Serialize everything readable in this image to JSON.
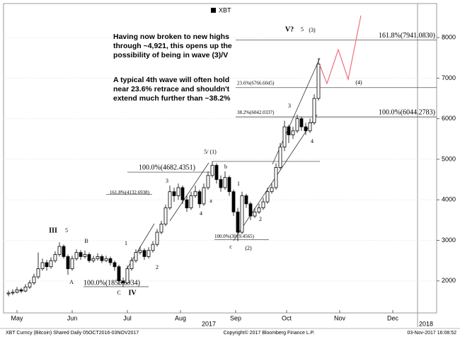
{
  "chart_data": {
    "type": "candlestick",
    "legend": "XBT",
    "categories": [
      null,
      null,
      null,
      null,
      null,
      null,
      null,
      null,
      null,
      null,
      null,
      null,
      null,
      null,
      null,
      null,
      null,
      null,
      null,
      null,
      null,
      null,
      null,
      null,
      null,
      null,
      null,
      null,
      null,
      null,
      null,
      null,
      null,
      null,
      null,
      null,
      null,
      null,
      null,
      null,
      null,
      null,
      null,
      null,
      null,
      null,
      null,
      null,
      null,
      null,
      null,
      null,
      null,
      null,
      null,
      null,
      null,
      null,
      null,
      null,
      null,
      null,
      null,
      null,
      null,
      null,
      null,
      null,
      null,
      null,
      null,
      null,
      null,
      null
    ],
    "open": [
      1680,
      1700,
      1720,
      1780,
      1750,
      1850,
      1950,
      2100,
      2300,
      2450,
      2350,
      2500,
      2650,
      2850,
      2600,
      2300,
      2550,
      2700,
      2600,
      2650,
      2500,
      2550,
      2600,
      2500,
      2550,
      2450,
      2350,
      2000,
      1950,
      2300,
      2500,
      2700,
      2750,
      2600,
      2750,
      2900,
      3200,
      3400,
      3800,
      4200,
      4100,
      4300,
      4000,
      3800,
      4100,
      4200,
      3900,
      4300,
      4600,
      4850,
      4500,
      4300,
      4550,
      4200,
      3700,
      3200,
      4100,
      3900,
      3600,
      3700,
      3800,
      3950,
      4200,
      4300,
      4800,
      5300,
      5800,
      5600,
      5700,
      6000,
      5800,
      5700,
      5900,
      6500
    ],
    "high": [
      1760,
      1790,
      1850,
      1830,
      1920,
      2020,
      2180,
      2700,
      2550,
      2520,
      2580,
      2730,
      2950,
      2900,
      2650,
      2620,
      2780,
      2760,
      2750,
      2700,
      2620,
      2680,
      2650,
      2620,
      2600,
      2500,
      2400,
      2080,
      2380,
      2580,
      2780,
      2850,
      2800,
      2830,
      2980,
      3280,
      3480,
      3880,
      4350,
      4300,
      4400,
      4350,
      4100,
      4200,
      4350,
      4250,
      4400,
      4700,
      4950,
      4900,
      4600,
      4700,
      4600,
      4250,
      3800,
      4200,
      4150,
      3950,
      3800,
      3900,
      4050,
      4300,
      4400,
      4900,
      5400,
      5950,
      5850,
      5800,
      6100,
      6050,
      5900,
      6000,
      6600,
      7500
    ],
    "low": [
      1620,
      1650,
      1690,
      1700,
      1720,
      1800,
      1900,
      2050,
      2250,
      2250,
      2300,
      2450,
      2600,
      2550,
      2150,
      2250,
      2500,
      2520,
      2550,
      2450,
      2450,
      2500,
      2440,
      2460,
      2380,
      2250,
      1900,
      1850,
      1920,
      2250,
      2450,
      2650,
      2520,
      2550,
      2700,
      2850,
      3150,
      3350,
      3750,
      3950,
      4000,
      3900,
      3700,
      3750,
      4050,
      3800,
      3850,
      4250,
      4550,
      4400,
      4200,
      4250,
      4100,
      3600,
      2980,
      3150,
      3800,
      3500,
      3550,
      3650,
      3750,
      3900,
      4150,
      4250,
      4750,
      5200,
      5400,
      5500,
      5650,
      5700,
      5600,
      5650,
      5850,
      6450
    ],
    "close": [
      1700,
      1720,
      1780,
      1750,
      1850,
      1950,
      2100,
      2300,
      2450,
      2350,
      2500,
      2650,
      2850,
      2600,
      2300,
      2550,
      2700,
      2600,
      2650,
      2500,
      2550,
      2600,
      2500,
      2550,
      2450,
      2350,
      2000,
      1950,
      2300,
      2500,
      2700,
      2750,
      2600,
      2750,
      2900,
      3200,
      3400,
      3800,
      4200,
      4100,
      4300,
      4000,
      3800,
      4100,
      4200,
      3900,
      4300,
      4600,
      4850,
      4500,
      4300,
      4550,
      4200,
      3700,
      3200,
      4100,
      3900,
      3600,
      3700,
      3800,
      3950,
      4200,
      4300,
      4800,
      5300,
      5800,
      5600,
      5700,
      6000,
      5800,
      5700,
      5900,
      6500,
      7350
    ],
    "ylim": [
      1210,
      8840
    ],
    "yticks": [
      2000,
      3000,
      4000,
      5000,
      6000,
      7000,
      8000
    ],
    "xticks": [
      {
        "value": 2,
        "label": "May"
      },
      {
        "value": 15,
        "label": "Jun"
      },
      {
        "value": 28,
        "label": "Jul"
      },
      {
        "value": 40.5,
        "label": "Aug"
      },
      {
        "value": 53.5,
        "label": "Sep"
      },
      {
        "value": 65.5,
        "label": "Oct"
      },
      {
        "value": 78,
        "label": "Nov"
      },
      {
        "value": 90.5,
        "label": "Dec"
      }
    ],
    "year_labels": [
      "2017",
      "2018"
    ],
    "levels": [
      {
        "value": 7941.083,
        "label": "161.8%(7941.0830)"
      },
      {
        "value": 6766.6045,
        "label": "23.6%(6766.6045)"
      },
      {
        "value": 6042.0337,
        "label": "38.2%(6042.0337)"
      },
      {
        "value": 6044.2783,
        "label": "100.0%(6044.2783)"
      },
      {
        "value": 4682.4351,
        "label": "100.0%(4682.4351)"
      },
      {
        "value": 4132.6938,
        "label": "161.8%(4132.6938)"
      },
      {
        "value": 3019.4565,
        "label": "100.0%(3019.4565)"
      },
      {
        "value": 1856.6934,
        "label": "100.0%(1856.6934)"
      }
    ],
    "wave_labels": [
      "III",
      "5",
      "A",
      "B",
      "C",
      "IV",
      "1",
      "2",
      "3",
      "4",
      "5/ (1)",
      "a",
      "b",
      "c",
      "(2)",
      "1",
      "2",
      "3",
      "4",
      "V?",
      "5",
      "(3)",
      "(4)"
    ],
    "notes": [
      [
        "Having now broken to new highs",
        "through ~4,921, this opens up the",
        "possibility of being in wave (3)/V"
      ],
      [
        "A typical 4th wave will often hold",
        "near 23.6% retrace and shouldn't",
        "extend much further than ~38.2%"
      ]
    ],
    "footer": [
      "XBT Curncy (Bitcoin) Shared Daily 05OCT2016-03NOV2017",
      "Copyright© 2017 Bloomberg Finance L.P.",
      "03-Nov-2017 16:08:52"
    ]
  }
}
